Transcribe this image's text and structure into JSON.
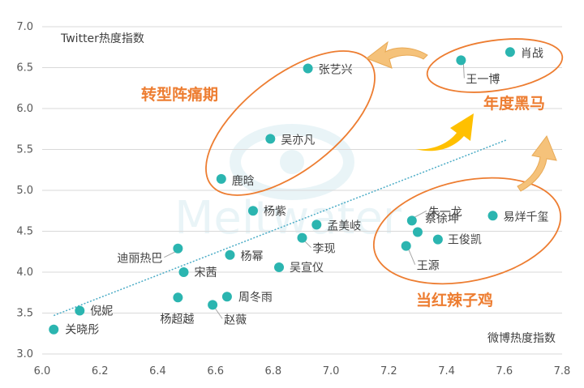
{
  "chart_data": {
    "type": "scatter",
    "xlabel": "微博热度指数",
    "ylabel": "Twitter热度指数",
    "xlim": [
      6.0,
      7.8
    ],
    "ylim": [
      3.0,
      7.0
    ],
    "x_ticks": [
      "6.0",
      "6.2",
      "6.4",
      "6.6",
      "6.8",
      "7.0",
      "7.2",
      "7.4",
      "7.6",
      "7.8"
    ],
    "y_ticks": [
      "3.0",
      "3.5",
      "4.0",
      "4.5",
      "5.0",
      "5.5",
      "6.0",
      "6.5",
      "7.0"
    ],
    "grid": "horizontal",
    "marker_color": "#2BB5B0",
    "trendline_color": "#4BACC6",
    "trendline": {
      "x": [
        6.04,
        7.61
      ],
      "y": [
        3.47,
        5.62
      ]
    },
    "points": [
      {
        "name": "关晓彤",
        "x": 6.04,
        "y": 3.3
      },
      {
        "name": "倪妮",
        "x": 6.13,
        "y": 3.53
      },
      {
        "name": "杨超越",
        "x": 6.47,
        "y": 3.69
      },
      {
        "name": "迪丽热巴",
        "x": 6.47,
        "y": 4.29
      },
      {
        "name": "宋茜",
        "x": 6.49,
        "y": 4.0
      },
      {
        "name": "赵薇",
        "x": 6.59,
        "y": 3.6
      },
      {
        "name": "周冬雨",
        "x": 6.64,
        "y": 3.7
      },
      {
        "name": "鹿晗",
        "x": 6.62,
        "y": 5.14
      },
      {
        "name": "杨幂",
        "x": 6.65,
        "y": 4.21
      },
      {
        "name": "杨紫",
        "x": 6.73,
        "y": 4.75
      },
      {
        "name": "吴亦凡",
        "x": 6.79,
        "y": 5.63
      },
      {
        "name": "吴宣仪",
        "x": 6.82,
        "y": 4.06
      },
      {
        "name": "李现",
        "x": 6.9,
        "y": 4.42
      },
      {
        "name": "张艺兴",
        "x": 6.92,
        "y": 6.49
      },
      {
        "name": "孟美岐",
        "x": 6.95,
        "y": 4.58
      },
      {
        "name": "王源",
        "x": 7.26,
        "y": 4.32
      },
      {
        "name": "朱一龙",
        "x": 7.28,
        "y": 4.63
      },
      {
        "name": "蔡徐坤",
        "x": 7.3,
        "y": 4.49
      },
      {
        "name": "王俊凯",
        "x": 7.37,
        "y": 4.4
      },
      {
        "name": "王一博",
        "x": 7.45,
        "y": 6.59
      },
      {
        "name": "易烊千玺",
        "x": 7.56,
        "y": 4.69
      },
      {
        "name": "肖战",
        "x": 7.62,
        "y": 6.69
      }
    ],
    "annotations": [
      "转型阵痛期",
      "年度黑马",
      "当红辣子鸡"
    ],
    "watermark": "Meltwater",
    "accent_color": "#ED7D31",
    "arrow_color": "#FFC000"
  }
}
